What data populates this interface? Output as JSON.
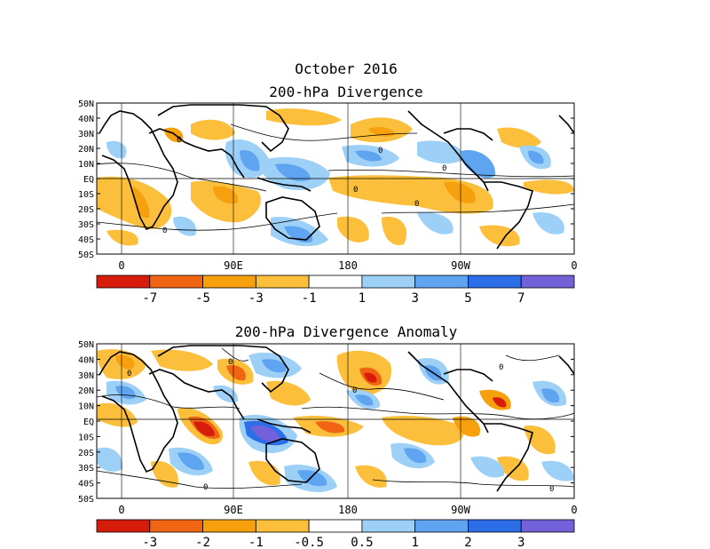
{
  "date_title": "October 2016",
  "panels": [
    {
      "title": "200-hPa Divergence",
      "lat_labels": [
        "50N",
        "40N",
        "30N",
        "20N",
        "10N",
        "EQ",
        "10S",
        "20S",
        "30S",
        "40S",
        "50S"
      ],
      "lon_labels": [
        "0",
        "90E",
        "180",
        "90W",
        "0"
      ],
      "colorbar": {
        "labels": [
          "-7",
          "-5",
          "-3",
          "-1",
          "1",
          "3",
          "5",
          "7"
        ],
        "colors": [
          "#d81c0c",
          "#f06412",
          "#f7a00e",
          "#fbbf3c",
          "#ffffff",
          "#9dd0f7",
          "#5fa4f0",
          "#2c6ee8",
          "#7261d9"
        ]
      },
      "contour_label": "0"
    },
    {
      "title": "200-hPa Divergence Anomaly",
      "lat_labels": [
        "50N",
        "40N",
        "30N",
        "20N",
        "10N",
        "EQ",
        "10S",
        "20S",
        "30S",
        "40S",
        "50S"
      ],
      "lon_labels": [
        "0",
        "90E",
        "180",
        "90W",
        "0"
      ],
      "colorbar": {
        "labels": [
          "-3",
          "-2",
          "-1",
          "-0.5",
          "0.5",
          "1",
          "2",
          "3"
        ],
        "colors": [
          "#d81c0c",
          "#f06412",
          "#f7a00e",
          "#fbbf3c",
          "#ffffff",
          "#9dd0f7",
          "#5fa4f0",
          "#2c6ee8",
          "#7261d9"
        ]
      },
      "contour_label": "0"
    }
  ]
}
